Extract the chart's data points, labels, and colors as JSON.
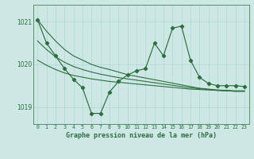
{
  "title": "Graphe pression niveau de la mer (hPa)",
  "background_color": "#cde8e4",
  "grid_color": "#b0d8d0",
  "line_color": "#2d6e3e",
  "x_labels": [
    "0",
    "1",
    "2",
    "3",
    "4",
    "5",
    "6",
    "7",
    "8",
    "9",
    "10",
    "11",
    "12",
    "13",
    "14",
    "15",
    "16",
    "17",
    "18",
    "19",
    "20",
    "21",
    "22",
    "23"
  ],
  "y_ticks": [
    1019,
    1020,
    1021
  ],
  "ylim": [
    1018.6,
    1021.4
  ],
  "xlim": [
    -0.5,
    23.5
  ],
  "series_main": [
    1021.05,
    1020.5,
    1020.2,
    1019.9,
    1019.65,
    1019.45,
    1018.85,
    1018.85,
    1019.35,
    1019.6,
    1019.75,
    1019.85,
    1019.9,
    1020.5,
    1020.2,
    1020.85,
    1020.9,
    1020.1,
    1019.7,
    1019.55,
    1019.5,
    1019.5,
    1019.5,
    1019.48
  ],
  "series_smooth1": [
    1021.05,
    1020.78,
    1020.55,
    1020.35,
    1020.2,
    1020.1,
    1020.0,
    1019.93,
    1019.88,
    1019.82,
    1019.76,
    1019.72,
    1019.68,
    1019.64,
    1019.6,
    1019.56,
    1019.52,
    1019.48,
    1019.44,
    1019.42,
    1019.4,
    1019.39,
    1019.38,
    1019.38
  ],
  "series_smooth2": [
    1020.55,
    1020.35,
    1020.18,
    1020.05,
    1019.95,
    1019.88,
    1019.82,
    1019.77,
    1019.73,
    1019.69,
    1019.66,
    1019.63,
    1019.6,
    1019.57,
    1019.54,
    1019.51,
    1019.48,
    1019.45,
    1019.43,
    1019.41,
    1019.39,
    1019.38,
    1019.37,
    1019.37
  ],
  "series_smooth3": [
    1020.1,
    1019.98,
    1019.88,
    1019.8,
    1019.74,
    1019.7,
    1019.66,
    1019.63,
    1019.6,
    1019.58,
    1019.56,
    1019.54,
    1019.52,
    1019.5,
    1019.48,
    1019.46,
    1019.44,
    1019.42,
    1019.41,
    1019.4,
    1019.39,
    1019.38,
    1019.37,
    1019.37
  ]
}
